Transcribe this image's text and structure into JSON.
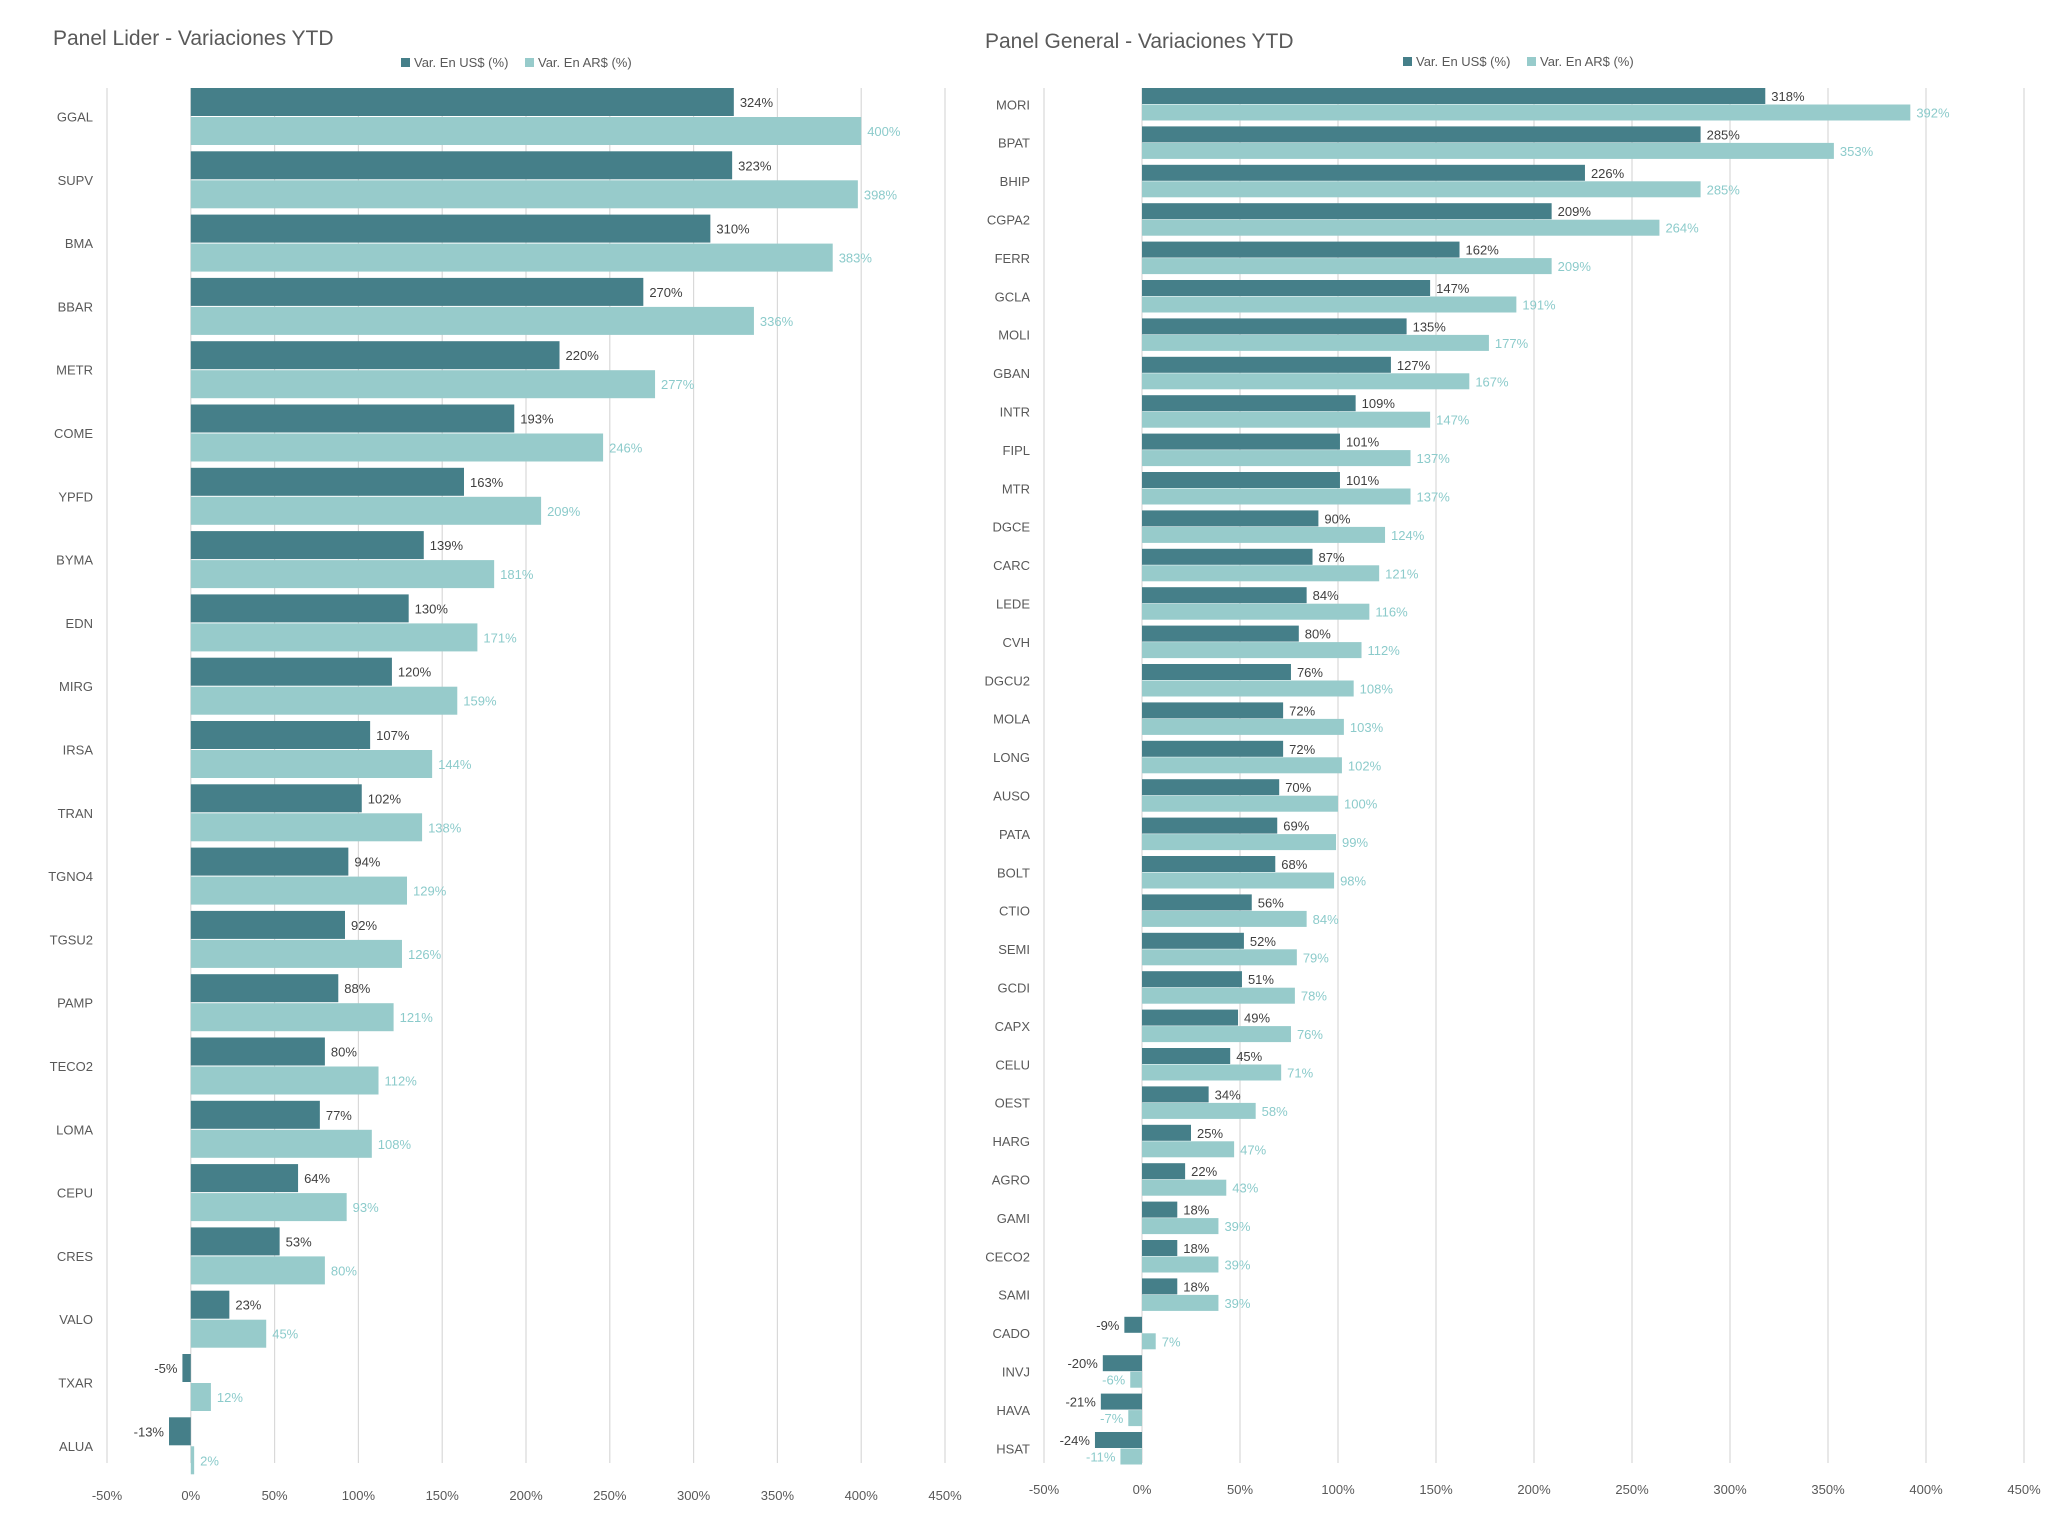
{
  "colors": {
    "usd": "#457f89",
    "ars": "#97cbcb",
    "text": "#595959",
    "grid": "#d9d9d9"
  },
  "chart_data": [
    {
      "type": "bar",
      "orientation": "horizontal",
      "title": "Panel Lider - Variaciones YTD",
      "legend": [
        "Var. En US$ (%)",
        "Var. En AR$ (%)"
      ],
      "legend_position": "top",
      "xlim": [
        -50,
        450
      ],
      "xticks": [
        -50,
        0,
        50,
        100,
        150,
        200,
        250,
        300,
        350,
        400,
        450
      ],
      "xtick_labels": [
        "-50%",
        "0%",
        "50%",
        "100%",
        "150%",
        "200%",
        "250%",
        "300%",
        "350%",
        "400%",
        "450%"
      ],
      "categories": [
        "GGAL",
        "SUPV",
        "BMA",
        "BBAR",
        "METR",
        "COME",
        "YPFD",
        "BYMA",
        "EDN",
        "MIRG",
        "IRSA",
        "TRAN",
        "TGNO4",
        "TGSU2",
        "PAMP",
        "TECO2",
        "LOMA",
        "CEPU",
        "CRES",
        "VALO",
        "TXAR",
        "ALUA"
      ],
      "series": [
        {
          "name": "Var. En US$ (%)",
          "values": [
            324,
            323,
            310,
            270,
            220,
            193,
            163,
            139,
            130,
            120,
            107,
            102,
            94,
            92,
            88,
            80,
            77,
            64,
            53,
            23,
            -5,
            -13
          ]
        },
        {
          "name": "Var. En AR$ (%)",
          "values": [
            400,
            398,
            383,
            336,
            277,
            246,
            209,
            181,
            171,
            159,
            144,
            138,
            129,
            126,
            121,
            112,
            108,
            93,
            80,
            45,
            12,
            2
          ]
        }
      ]
    },
    {
      "type": "bar",
      "orientation": "horizontal",
      "title": "Panel General - Variaciones YTD",
      "legend": [
        "Var. En US$ (%)",
        "Var. En AR$ (%)"
      ],
      "legend_position": "top",
      "xlim": [
        -50,
        450
      ],
      "xticks": [
        -50,
        0,
        50,
        100,
        150,
        200,
        250,
        300,
        350,
        400,
        450
      ],
      "xtick_labels": [
        "-50%",
        "0%",
        "50%",
        "100%",
        "150%",
        "200%",
        "250%",
        "300%",
        "350%",
        "400%",
        "450%"
      ],
      "categories": [
        "MORI",
        "BPAT",
        "BHIP",
        "CGPA2",
        "FERR",
        "GCLA",
        "MOLI",
        "GBAN",
        "INTR",
        "FIPL",
        "MTR",
        "DGCE",
        "CARC",
        "LEDE",
        "CVH",
        "DGCU2",
        "MOLA",
        "LONG",
        "AUSO",
        "PATA",
        "BOLT",
        "CTIO",
        "SEMI",
        "GCDI",
        "CAPX",
        "CELU",
        "OEST",
        "HARG",
        "AGRO",
        "GAMI",
        "CECO2",
        "SAMI",
        "CADO",
        "INVJ",
        "HAVA",
        "HSAT"
      ],
      "series": [
        {
          "name": "Var. En US$ (%)",
          "values": [
            318,
            285,
            226,
            209,
            162,
            147,
            135,
            127,
            109,
            101,
            101,
            90,
            87,
            84,
            80,
            76,
            72,
            72,
            70,
            69,
            68,
            56,
            52,
            51,
            49,
            45,
            34,
            25,
            22,
            18,
            18,
            18,
            -9,
            -20,
            -21,
            -24
          ]
        },
        {
          "name": "Var. En AR$ (%)",
          "values": [
            392,
            353,
            285,
            264,
            209,
            191,
            177,
            167,
            147,
            137,
            137,
            124,
            121,
            116,
            112,
            108,
            103,
            102,
            100,
            99,
            98,
            84,
            79,
            78,
            76,
            71,
            58,
            47,
            43,
            39,
            39,
            39,
            7,
            -6,
            -7,
            -11
          ]
        }
      ]
    }
  ]
}
